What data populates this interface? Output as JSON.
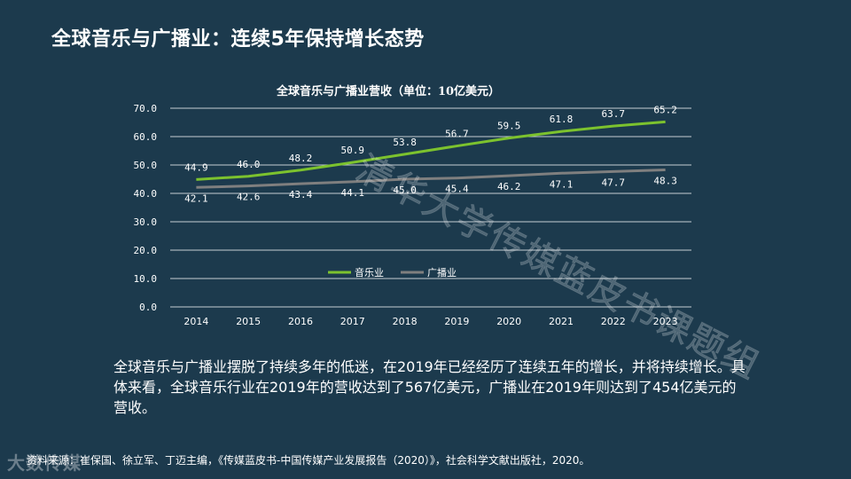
{
  "slide": {
    "title": "全球音乐与广播业：连续5年保持增长态势",
    "watermark": "清华大学传媒蓝皮书课题组",
    "body": "全球音乐与广播业摆脱了持续多年的低迷，在2019年已经经历了连续五年的增长，并将持续增长。具体来看，全球音乐行业在2019年的营收达到了567亿美元，广播业在2019年则达到了454亿美元的营收。",
    "source": "资料来源：崔保国、徐立军、丁迈主编，《传媒蓝皮书-中国传媒产业发展报告（2020）》，社会科学文献出版社，2020。",
    "logo": "大数传媒"
  },
  "colors": {
    "background": "#1c3a4d",
    "music": "#7cc22e",
    "broadcast": "#7f7f7f",
    "grid": "#ffffff"
  },
  "chart_data": {
    "type": "line",
    "title": "全球音乐与广播业营收（单位：10亿美元）",
    "categories": [
      "2014",
      "2015",
      "2016",
      "2017",
      "2018",
      "2019",
      "2020",
      "2021",
      "2022",
      "2023"
    ],
    "ylim": [
      0,
      70
    ],
    "yticks": [
      "0.0",
      "10.0",
      "20.0",
      "30.0",
      "40.0",
      "50.0",
      "60.0",
      "70.0"
    ],
    "grid": true,
    "legend_position": "center",
    "series": [
      {
        "name": "音乐业",
        "color": "#7cc22e",
        "values": [
          44.9,
          46.0,
          48.2,
          50.9,
          53.8,
          56.7,
          59.5,
          61.8,
          63.7,
          65.2
        ],
        "labels": [
          "44.9",
          "46.0",
          "48.2",
          "50.9",
          "53.8",
          "56.7",
          "59.5",
          "61.8",
          "63.7",
          "65.2"
        ]
      },
      {
        "name": "广播业",
        "color": "#7f7f7f",
        "values": [
          42.1,
          42.6,
          43.4,
          44.1,
          45.0,
          45.4,
          46.2,
          47.1,
          47.7,
          48.3
        ],
        "labels": [
          "42.1",
          "42.6",
          "43.4",
          "44.1",
          "45.0",
          "45.4",
          "46.2",
          "47.1",
          "47.7",
          "48.3"
        ]
      }
    ]
  }
}
